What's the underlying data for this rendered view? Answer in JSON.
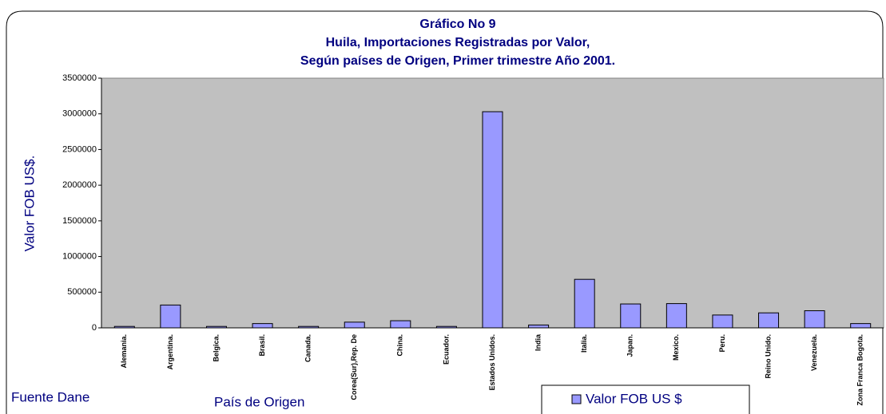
{
  "chart_data": {
    "type": "bar",
    "title": [
      "Gráfico No 9",
      "Huila, Importaciones Registradas por Valor,",
      "Según países de Origen,  Primer trimestre Año 2001."
    ],
    "y_label": "Valor FOB US$.",
    "x_label": "País de Origen",
    "source": "Fuente Dane",
    "categories": [
      "Alemania.",
      "Argentina.",
      "Belgica.",
      "Brasil.",
      "Canada.",
      "Corea(Sur),Rep. De",
      "China.",
      "Ecuador.",
      "Estados Unidos.",
      "India",
      "Italia.",
      "Japan.",
      "Mexico.",
      "Peru.",
      "Reino Unido.",
      "Venezuela.",
      "Zona Franca Bogota."
    ],
    "series": [
      {
        "name": "Valor FOB US $",
        "color": "#9999ff",
        "values": [
          20000,
          320000,
          20000,
          60000,
          20000,
          80000,
          100000,
          20000,
          3030000,
          40000,
          680000,
          335000,
          340000,
          180000,
          210000,
          240000,
          60000
        ]
      }
    ],
    "ylim": [
      0,
      3500000
    ],
    "yticks": [
      0,
      500000,
      1000000,
      1500000,
      2000000,
      2500000,
      3000000,
      3500000
    ],
    "grid": false,
    "legend": "bottom"
  }
}
